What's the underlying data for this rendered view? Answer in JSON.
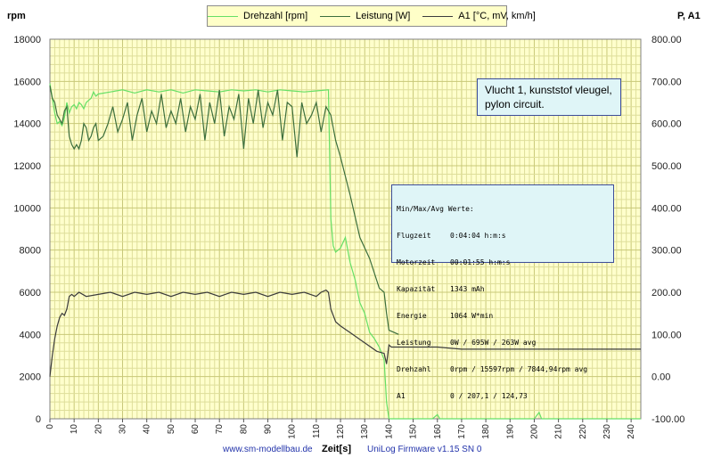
{
  "chart_data": {
    "type": "line",
    "legend": [
      "Drehzahl [rpm]",
      "Leistung [W]",
      "A1 [°C, mV, km/h]"
    ],
    "xlabel": "Zeit[s]",
    "ylabel_left": "rpm",
    "ylabel_right": "P, A1",
    "xlim": [
      0,
      244
    ],
    "ylim_left": [
      0,
      18000
    ],
    "ylim_right": [
      -100,
      800
    ],
    "x_ticks": [
      0,
      10,
      20,
      30,
      40,
      50,
      60,
      70,
      80,
      90,
      100,
      110,
      120,
      130,
      140,
      150,
      160,
      170,
      180,
      190,
      200,
      210,
      220,
      230,
      240
    ],
    "y_left_ticks": [
      "0",
      "2000",
      "4000",
      "6000",
      "8000",
      "10000",
      "12000",
      "14000",
      "16000",
      "18000"
    ],
    "y_right_ticks": [
      "-100.00",
      "0.00",
      "100.00",
      "200.00",
      "300.00",
      "400.00",
      "500.00",
      "600.00",
      "700.00",
      "800.00"
    ],
    "grid": true,
    "series": [
      {
        "name": "Drehzahl [rpm]",
        "axis": "left",
        "color": "#66e066",
        "x": [
          0,
          1,
          2,
          3,
          4,
          5,
          6,
          7,
          8,
          9,
          10,
          11,
          12,
          13,
          14,
          15,
          16,
          17,
          18,
          19,
          20,
          25,
          30,
          35,
          40,
          45,
          50,
          55,
          60,
          65,
          70,
          75,
          80,
          85,
          90,
          95,
          100,
          105,
          110,
          115,
          116,
          117,
          118,
          120,
          122,
          124,
          126,
          128,
          130,
          132,
          134,
          136,
          138,
          139,
          140,
          141,
          150,
          158,
          160,
          161,
          170,
          180,
          190,
          200,
          202,
          203,
          210,
          220,
          230,
          244
        ],
        "y": [
          15900,
          15200,
          14500,
          14000,
          14100,
          13900,
          14300,
          15000,
          14500,
          14800,
          14900,
          14700,
          15000,
          14900,
          14700,
          15000,
          15100,
          15200,
          15500,
          15300,
          15400,
          15500,
          15600,
          15450,
          15600,
          15500,
          15600,
          15450,
          15600,
          15550,
          15500,
          15600,
          15550,
          15600,
          15500,
          15600,
          15550,
          15500,
          15550,
          15600,
          9500,
          8200,
          7900,
          8100,
          8600,
          7400,
          6600,
          5500,
          5000,
          4100,
          3800,
          3400,
          2800,
          800,
          -100,
          -100,
          -100,
          -100,
          200,
          -100,
          -100,
          -100,
          -100,
          -100,
          300,
          -100,
          -100,
          -100,
          -100,
          -100
        ]
      },
      {
        "name": "Leistung [W]",
        "axis": "right",
        "color": "#3c6e3c",
        "x": [
          0,
          1,
          2,
          3,
          4,
          5,
          6,
          7,
          8,
          9,
          10,
          11,
          12,
          13,
          14,
          15,
          16,
          17,
          18,
          19,
          20,
          22,
          24,
          26,
          28,
          30,
          32,
          34,
          36,
          38,
          40,
          42,
          44,
          46,
          48,
          50,
          52,
          54,
          56,
          58,
          60,
          62,
          64,
          66,
          68,
          70,
          72,
          74,
          76,
          78,
          80,
          82,
          84,
          86,
          88,
          90,
          92,
          94,
          96,
          98,
          100,
          102,
          104,
          106,
          108,
          110,
          112,
          114,
          115,
          116,
          118,
          120,
          124,
          128,
          132,
          136,
          138,
          139,
          140,
          144
        ],
        "y": [
          690,
          660,
          650,
          620,
          610,
          600,
          630,
          640,
          570,
          550,
          540,
          550,
          540,
          560,
          600,
          590,
          560,
          570,
          590,
          600,
          560,
          570,
          600,
          640,
          580,
          610,
          650,
          560,
          620,
          660,
          580,
          630,
          600,
          670,
          590,
          630,
          600,
          660,
          580,
          640,
          610,
          670,
          560,
          650,
          600,
          680,
          570,
          640,
          610,
          670,
          540,
          660,
          600,
          680,
          590,
          650,
          620,
          680,
          560,
          650,
          640,
          520,
          650,
          600,
          620,
          650,
          580,
          640,
          630,
          620,
          560,
          520,
          430,
          330,
          280,
          210,
          200,
          150,
          110,
          100
        ]
      },
      {
        "name": "A1 [°C, mV, km/h]",
        "axis": "right",
        "color": "#3c3c3c",
        "x": [
          0,
          1,
          2,
          3,
          4,
          5,
          6,
          7,
          8,
          9,
          10,
          12,
          15,
          20,
          25,
          30,
          35,
          40,
          45,
          50,
          55,
          60,
          65,
          70,
          75,
          80,
          85,
          90,
          95,
          100,
          105,
          110,
          112,
          114,
          115,
          116,
          118,
          120,
          125,
          130,
          135,
          138,
          139,
          140,
          141,
          150,
          160,
          170,
          180,
          200,
          220,
          244
        ],
        "y": [
          0,
          50,
          90,
          120,
          140,
          150,
          145,
          160,
          190,
          195,
          190,
          200,
          190,
          195,
          200,
          190,
          200,
          195,
          200,
          190,
          200,
          195,
          200,
          190,
          200,
          195,
          200,
          190,
          200,
          195,
          200,
          190,
          200,
          205,
          200,
          160,
          130,
          120,
          100,
          80,
          60,
          55,
          30,
          75,
          70,
          70,
          70,
          65,
          65,
          65,
          65,
          65
        ]
      }
    ]
  },
  "note": [
    "Vlucht 1, kunststof vleugel,",
    "pylon circuit."
  ],
  "stats": {
    "header": "Min/Max/Avg Werte:",
    "rows": [
      {
        "k": "Flugzeit",
        "v": "0:04:04 h:m:s"
      },
      {
        "k": "Motorzeit",
        "v": "00:01:55 h:m:s"
      },
      {
        "k": "Kapazität",
        "v": "1343 mAh"
      },
      {
        "k": "Energie",
        "v": "1064 W*min"
      },
      {
        "k": "Leistung",
        "v": "0W / 695W / 263W avg"
      },
      {
        "k": "Drehzahl",
        "v": "0rpm / 15597rpm / 7844,94rpm avg"
      },
      {
        "k": "A1",
        "v": "0 / 207,1 / 124,73"
      }
    ]
  },
  "footer": {
    "website": "www.sm-modellbau.de",
    "firmware": "UniLog Firmware v1.15 SN 0"
  }
}
